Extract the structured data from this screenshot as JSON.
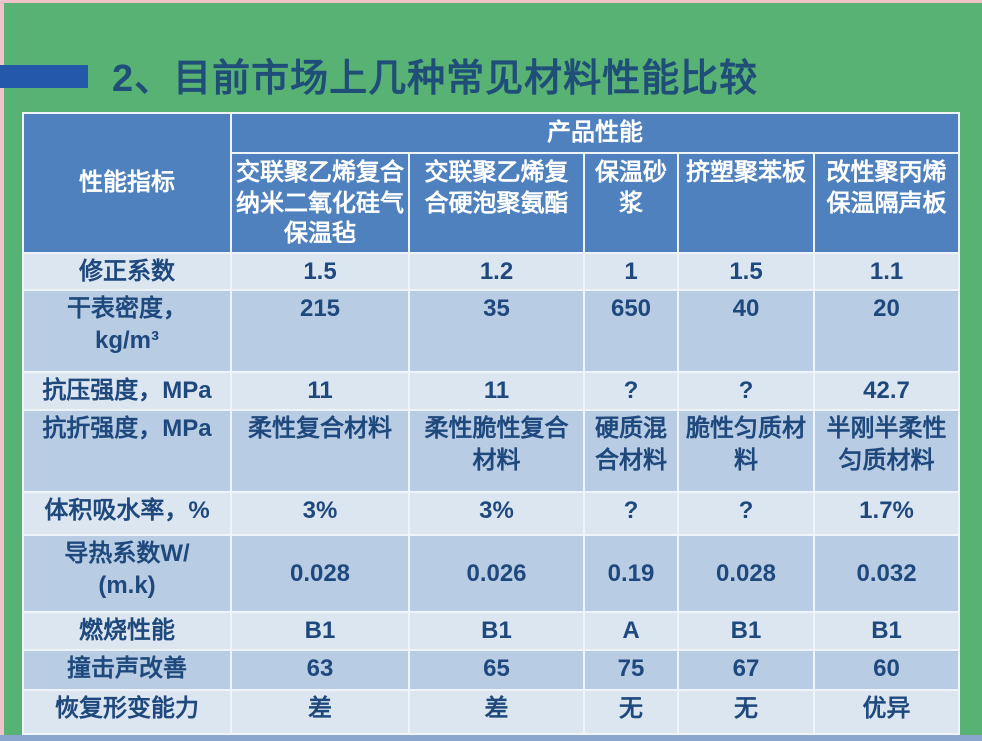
{
  "slide": {
    "title": "2、目前市场上几种常见材料性能比较",
    "colors": {
      "background_green": "#58B273",
      "frame_pink": "#F0C3CA",
      "bottom_bar_blue": "#8AA5CE",
      "title_text": "#1F4E79",
      "accent_bar": "#2458A8",
      "table_header_bg": "#4E81BD",
      "table_header_text": "#FFFFFF",
      "row_light": "#DCE6F1",
      "row_dark": "#B8CCE4",
      "cell_text": "#1F497D"
    }
  },
  "table": {
    "corner_header": "性能指标",
    "span_header": "产品性能",
    "columns": [
      "交联聚乙烯复合纳米二氧化硅气保温毡",
      "交联聚乙烯复合硬泡聚氨酯",
      "保温砂浆",
      "挤塑聚苯板",
      "改性聚丙烯保温隔声板"
    ],
    "rows": [
      {
        "label": "修正系数",
        "values": [
          "1.5",
          "1.2",
          "1",
          "1.5",
          "1.1"
        ]
      },
      {
        "label": "干表密度，\nkg/m³",
        "values": [
          "215",
          "35",
          "650",
          "40",
          "20"
        ]
      },
      {
        "label": "抗压强度，MPa",
        "values": [
          "11",
          "11",
          "?",
          "?",
          "42.7"
        ]
      },
      {
        "label": "抗折强度，MPa",
        "values": [
          "柔性复合材料",
          "柔性脆性复合材料",
          "硬质混合材料",
          "脆性匀质材料",
          "半刚半柔性匀质材料"
        ]
      },
      {
        "label": "体积吸水率，%",
        "values": [
          "3%",
          "3%",
          "?",
          "?",
          "1.7%"
        ]
      },
      {
        "label": "导热系数W/\n(m.k)",
        "values": [
          "0.028",
          "0.026",
          "0.19",
          "0.028",
          "0.032"
        ]
      },
      {
        "label": "燃烧性能",
        "values": [
          "B1",
          "B1",
          "A",
          "B1",
          "B1"
        ]
      },
      {
        "label": "撞击声改善",
        "values": [
          "63",
          "65",
          "75",
          "67",
          "60"
        ]
      },
      {
        "label": "恢复形变能力",
        "values": [
          "差",
          "差",
          "无",
          "无",
          "优异"
        ]
      }
    ]
  }
}
